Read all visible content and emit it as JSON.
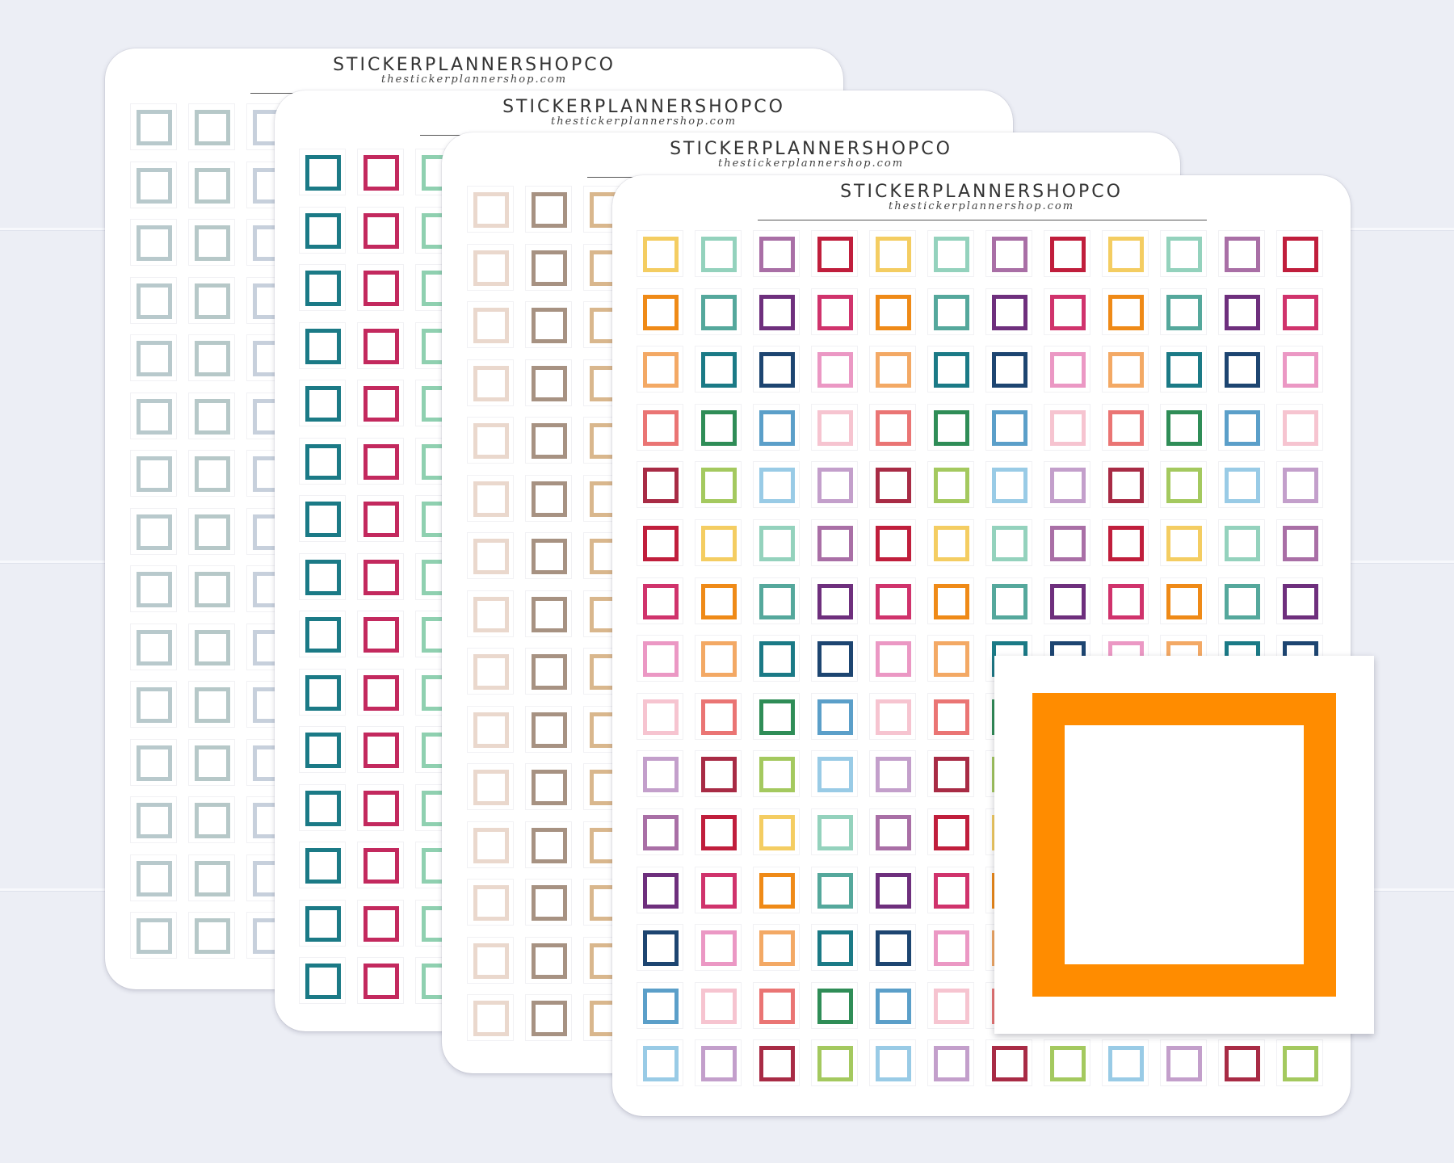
{
  "brand": "STICKERPLANNERSHOPCO",
  "url": "thestickerplannershop.com",
  "sheets": [
    {
      "id": "sheet-1",
      "palette": "blue-gray",
      "colors": [
        "#b8c9cc",
        "#b6c8c8",
        "#c7d0dc"
      ]
    },
    {
      "id": "sheet-2",
      "palette": "teal-berry",
      "colors": [
        "#1b7a86",
        "#c3295e",
        "#8fd0b0"
      ]
    },
    {
      "id": "sheet-3",
      "palette": "neutral",
      "colors": [
        "#ead8cd",
        "#a79282",
        "#d9b78d"
      ]
    },
    {
      "id": "sheet-4",
      "palette": "rainbow",
      "rows": [
        [
          "#f4cd62",
          "#94d2bd",
          "#a96fa6",
          "#c01e3c",
          "#f4cd62",
          "#94d2bd",
          "#a96fa6",
          "#c01e3c",
          "#f4cd62",
          "#94d2bd",
          "#a96fa6",
          "#c01e3c"
        ],
        [
          "#ef8a17",
          "#55a89c",
          "#6e2f7d",
          "#d0336c",
          "#ef8a17",
          "#55a89c",
          "#6e2f7d",
          "#d0336c",
          "#ef8a17",
          "#55a89c",
          "#6e2f7d",
          "#d0336c"
        ],
        [
          "#f3a965",
          "#1b7a86",
          "#1d4571",
          "#eb98c4",
          "#f3a965",
          "#1b7a86",
          "#1d4571",
          "#eb98c4",
          "#f3a965",
          "#1b7a86",
          "#1d4571",
          "#eb98c4"
        ],
        [
          "#ea7574",
          "#2f8d57",
          "#5b9fc9",
          "#f6c4d0",
          "#ea7574",
          "#2f8d57",
          "#5b9fc9",
          "#f6c4d0",
          "#ea7574",
          "#2f8d57",
          "#5b9fc9",
          "#f6c4d0"
        ],
        [
          "#a82b45",
          "#a4c95f",
          "#99cbe6",
          "#c39fcb",
          "#a82b45",
          "#a4c95f",
          "#99cbe6",
          "#c39fcb",
          "#a82b45",
          "#a4c95f",
          "#99cbe6",
          "#c39fcb"
        ],
        [
          "#c01e3c",
          "#f4cd62",
          "#94d2bd",
          "#a96fa6",
          "#c01e3c",
          "#f4cd62",
          "#94d2bd",
          "#a96fa6",
          "#c01e3c",
          "#f4cd62",
          "#94d2bd",
          "#a96fa6"
        ],
        [
          "#d0336c",
          "#ef8a17",
          "#55a89c",
          "#6e2f7d",
          "#d0336c",
          "#ef8a17",
          "#55a89c",
          "#6e2f7d",
          "#d0336c",
          "#ef8a17",
          "#55a89c",
          "#6e2f7d"
        ],
        [
          "#eb98c4",
          "#f3a965",
          "#1b7a86",
          "#1d4571",
          "#eb98c4",
          "#f3a965",
          "#1b7a86",
          "#1d4571",
          "#eb98c4",
          "#f3a965",
          "#1b7a86",
          "#1d4571"
        ],
        [
          "#f6c4d0",
          "#ea7574",
          "#2f8d57",
          "#5b9fc9",
          "#f6c4d0",
          "#ea7574",
          "#2f8d57",
          "#5b9fc9",
          "#f6c4d0",
          "#ea7574",
          "#2f8d57",
          "#5b9fc9"
        ],
        [
          "#c39fcb",
          "#a82b45",
          "#a4c95f",
          "#99cbe6",
          "#c39fcb",
          "#a82b45",
          "#a4c95f",
          "#99cbe6",
          "#c39fcb",
          "#a82b45",
          "#a4c95f",
          "#99cbe6"
        ],
        [
          "#a96fa6",
          "#c01e3c",
          "#f4cd62",
          "#94d2bd",
          "#a96fa6",
          "#c01e3c",
          "#f4cd62",
          "#94d2bd",
          "#a96fa6",
          "#c01e3c",
          "#f4cd62",
          "#94d2bd"
        ],
        [
          "#6e2f7d",
          "#d0336c",
          "#ef8a17",
          "#55a89c",
          "#6e2f7d",
          "#d0336c",
          "#ef8a17",
          "#55a89c",
          "#6e2f7d",
          "#d0336c",
          "#ef8a17",
          "#55a89c"
        ],
        [
          "#1d4571",
          "#eb98c4",
          "#f3a965",
          "#1b7a86",
          "#1d4571",
          "#eb98c4",
          "#f3a965",
          "#1b7a86",
          "#1d4571",
          "#eb98c4",
          "#f3a965",
          "#1b7a86"
        ],
        [
          "#5b9fc9",
          "#f6c4d0",
          "#ea7574",
          "#2f8d57",
          "#5b9fc9",
          "#f6c4d0",
          "#ea7574",
          "#2f8d57",
          "#5b9fc9",
          "#f6c4d0",
          "#ea7574",
          "#2f8d57"
        ],
        [
          "#99cbe6",
          "#c39fcb",
          "#a82b45",
          "#a4c95f",
          "#99cbe6",
          "#c39fcb",
          "#a82b45",
          "#a4c95f",
          "#99cbe6",
          "#c39fcb",
          "#a82b45",
          "#a4c95f"
        ]
      ]
    }
  ],
  "zoom_color": "#ff8c00",
  "background": "#eceef5"
}
